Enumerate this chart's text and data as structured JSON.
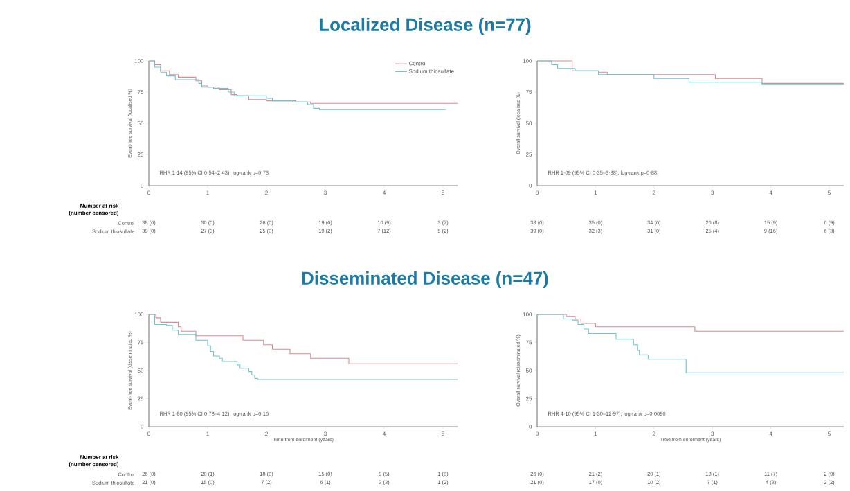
{
  "chart_data": [
    {
      "type": "step",
      "title": "Localized Disease (n=77)",
      "ylabel": "Event-free survival (localised %)",
      "xlim": [
        0,
        5.25
      ],
      "ylim": [
        0,
        100
      ],
      "xticks": [
        0,
        1,
        2,
        3,
        4,
        5
      ],
      "yticks": [
        0,
        25,
        50,
        75,
        100
      ],
      "legend": "top right",
      "series": [
        {
          "name": "Control",
          "color": "#d98a94",
          "x": [
            0,
            0.1,
            0.2,
            0.35,
            0.5,
            0.8,
            0.9,
            1.0,
            1.2,
            1.4,
            1.5,
            1.7,
            2.0,
            2.5,
            2.75,
            5.25
          ],
          "values": [
            100,
            97,
            92,
            89,
            87,
            84,
            80,
            79,
            77,
            73,
            72,
            69,
            68,
            67,
            66,
            66
          ]
        },
        {
          "name": "Sodium thiosulfate",
          "color": "#6cc4d0",
          "x": [
            0,
            0.1,
            0.2,
            0.3,
            0.45,
            0.85,
            0.9,
            1.1,
            1.35,
            1.45,
            2.0,
            2.1,
            2.45,
            2.7,
            2.8,
            2.9,
            5.05
          ],
          "values": [
            100,
            95,
            91,
            88,
            85,
            82,
            79,
            78,
            75,
            72,
            70,
            68,
            67,
            65,
            62,
            61,
            61
          ]
        }
      ],
      "annotations": [
        "RHR 1·14 (95% CI 0·54–2·43); log-rank p=0·73",
        "Number at risk",
        "(number censored)",
        "Control",
        "Sodium thiosulfate",
        "38 (0)",
        "30 (0)",
        "26 (0)",
        "19 (6)",
        "10 (9)",
        "3 (7)",
        "39 (0)",
        "27 (3)",
        "25 (0)",
        "19 (2)",
        "7 (12)",
        "5 (2)"
      ]
    },
    {
      "type": "step",
      "ylabel": "Overall survival (localised %)",
      "xlim": [
        0,
        5.25
      ],
      "ylim": [
        0,
        100
      ],
      "xticks": [
        0,
        1,
        2,
        3,
        4,
        5
      ],
      "yticks": [
        0,
        25,
        50,
        75,
        100
      ],
      "series": [
        {
          "color": "#d98a94",
          "x": [
            0,
            0.6,
            1.05,
            1.2,
            3.05,
            3.85,
            5.25
          ],
          "values": [
            100,
            92,
            91,
            89,
            86,
            82,
            82
          ]
        },
        {
          "color": "#6cc4d0",
          "x": [
            0,
            0.25,
            0.35,
            0.65,
            1.05,
            2.0,
            2.6,
            3.85,
            5.25
          ],
          "values": [
            100,
            97,
            94,
            92,
            89,
            86,
            83,
            81,
            81
          ]
        }
      ],
      "annotations": [
        "RHR 1·09 (95% CI 0·35–3·38); log-rank p=0·88",
        "38 (0)",
        "35 (0)",
        "34 (0)",
        "26 (8)",
        "15 (9)",
        "6 (9)",
        "39 (0)",
        "32 (3)",
        "31 (0)",
        "25 (4)",
        "9 (16)",
        "6 (3)"
      ]
    },
    {
      "type": "step",
      "title": "Disseminated Disease (n=47)",
      "xlabel": "Time from enrolment (years)",
      "ylabel": "Event-free survival (disseminated %)",
      "xlim": [
        0,
        5.25
      ],
      "ylim": [
        0,
        100
      ],
      "xticks": [
        0,
        1,
        2,
        3,
        4,
        5
      ],
      "yticks": [
        0,
        25,
        50,
        75,
        100
      ],
      "series": [
        {
          "color": "#d98a94",
          "x": [
            0,
            0.12,
            0.2,
            0.5,
            0.55,
            0.8,
            1.6,
            1.95,
            2.1,
            2.4,
            2.75,
            3.4,
            5.25
          ],
          "values": [
            100,
            97,
            93,
            89,
            85,
            81,
            77,
            73,
            69,
            65,
            61,
            56,
            56
          ]
        },
        {
          "color": "#6cc4d0",
          "x": [
            0,
            0.1,
            0.3,
            0.4,
            0.5,
            0.8,
            1.0,
            1.05,
            1.1,
            1.2,
            1.25,
            1.5,
            1.55,
            1.7,
            1.75,
            1.8,
            1.85,
            5.25
          ],
          "values": [
            100,
            91,
            90,
            86,
            82,
            77,
            72,
            67,
            63,
            61,
            58,
            55,
            52,
            49,
            46,
            43,
            42,
            42
          ]
        }
      ],
      "annotations": [
        "RHR 1·80 (95% CI 0·78–4·12); log-rank p=0·16",
        "Number at risk",
        "(number censored)",
        "Control",
        "Sodium thiosulfate",
        "26 (0)",
        "20 (1)",
        "18 (0)",
        "15 (0)",
        "9 (5)",
        "1 (8)",
        "21 (0)",
        "15 (0)",
        "7 (2)",
        "6 (1)",
        "3 (3)",
        "1 (2)"
      ]
    },
    {
      "type": "step",
      "xlabel": "Time from enrolment (years)",
      "ylabel": "Overall survival (disseminated %)",
      "xlim": [
        0,
        5.25
      ],
      "ylim": [
        0,
        100
      ],
      "xticks": [
        0,
        1,
        2,
        3,
        4,
        5
      ],
      "yticks": [
        0,
        25,
        50,
        75,
        100
      ],
      "series": [
        {
          "color": "#d98a94",
          "x": [
            0,
            0.5,
            0.65,
            0.75,
            1.0,
            2.7,
            5.25
          ],
          "values": [
            100,
            98,
            96,
            92,
            89,
            85,
            85
          ]
        },
        {
          "color": "#6cc4d0",
          "x": [
            0,
            0.45,
            0.6,
            0.7,
            0.8,
            0.88,
            1.35,
            1.65,
            1.72,
            1.75,
            1.9,
            2.55,
            5.25
          ],
          "values": [
            100,
            96,
            95,
            91,
            87,
            83,
            78,
            73,
            68,
            64,
            60,
            48,
            48
          ]
        }
      ],
      "annotations": [
        "RHR 4·10 (95% CI 1·30–12·97); log-rank p=0·0090",
        "26 (0)",
        "21 (2)",
        "20 (1)",
        "18 (1)",
        "11 (7)",
        "2 (9)",
        "21 (0)",
        "17 (0)",
        "10 (2)",
        "7 (1)",
        "4 (3)",
        "2 (2)"
      ]
    }
  ]
}
